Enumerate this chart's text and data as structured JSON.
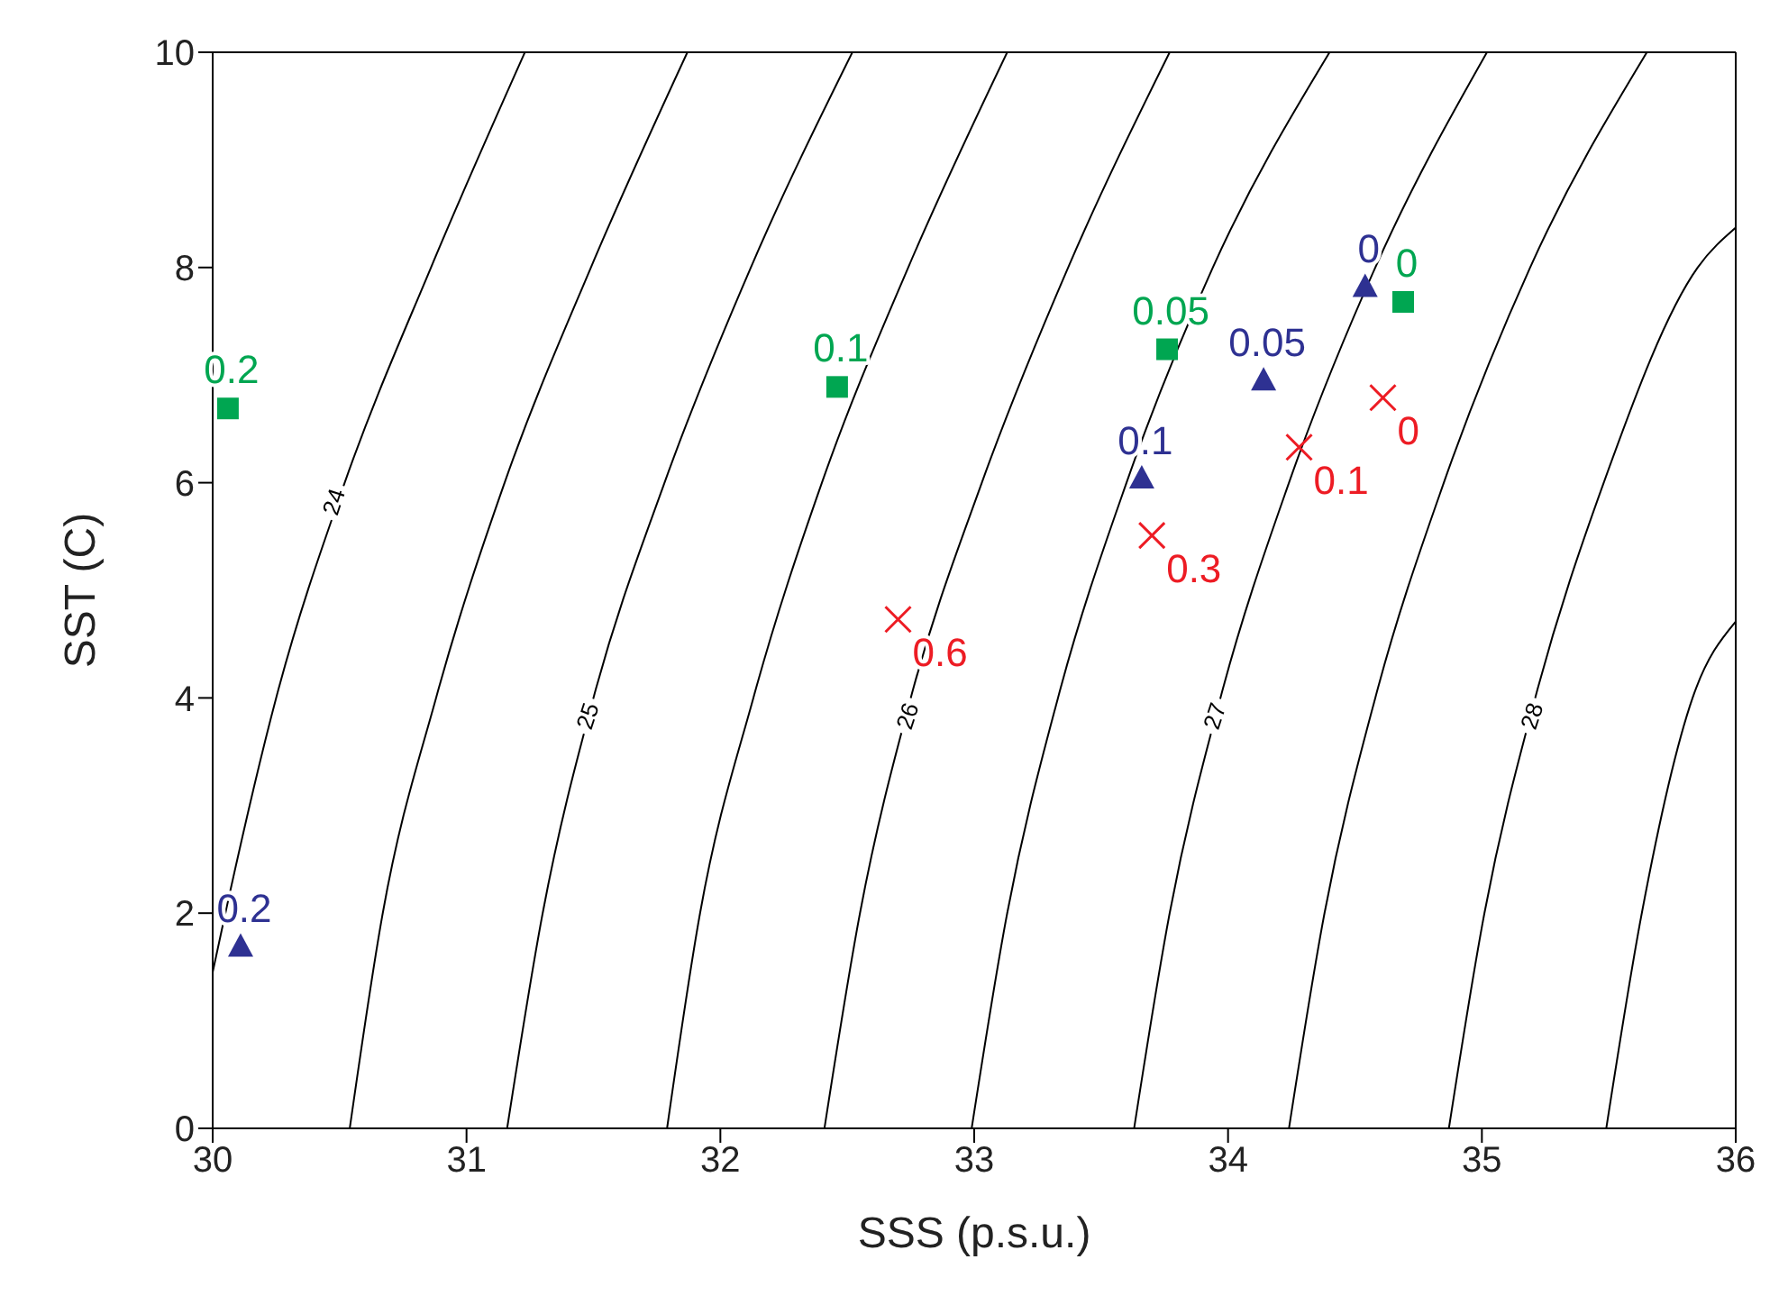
{
  "chart_data": {
    "type": "scatter",
    "xlabel": "SSS (p.s.u.)",
    "ylabel": "SST (C)",
    "xlim": [
      30,
      36
    ],
    "ylim": [
      0,
      10
    ],
    "xticks": [
      30,
      31,
      32,
      33,
      34,
      35,
      36
    ],
    "yticks": [
      0,
      2,
      4,
      6,
      8,
      10
    ],
    "grid": false,
    "legend": false,
    "series": [
      {
        "type": "line",
        "color": "#000000",
        "marker": "none",
        "x": [
          30,
          30.05,
          30.25,
          30.52,
          30.86,
          31.23
        ],
        "values": [
          1.45,
          2,
          4,
          6,
          8,
          10
        ]
      },
      {
        "type": "line",
        "color": "#000000",
        "marker": "none",
        "x": [
          30.54,
          30.67,
          30.88,
          31.15,
          31.49,
          31.87
        ],
        "values": [
          0,
          2,
          4,
          6,
          8,
          10
        ]
      },
      {
        "type": "line",
        "color": "#000000",
        "marker": "none",
        "x": [
          31.16,
          31.3,
          31.5,
          31.78,
          32.12,
          32.52
        ],
        "values": [
          0,
          2,
          4,
          6,
          8,
          10
        ]
      },
      {
        "type": "line",
        "color": "#000000",
        "marker": "none",
        "x": [
          31.79,
          31.92,
          32.13,
          32.4,
          32.74,
          33.13
        ],
        "values": [
          0,
          2,
          4,
          6,
          8,
          10
        ]
      },
      {
        "type": "line",
        "color": "#000000",
        "marker": "none",
        "x": [
          32.41,
          32.55,
          32.75,
          33.03,
          33.37,
          33.77
        ],
        "values": [
          0,
          2,
          4,
          6,
          8,
          10
        ]
      },
      {
        "type": "line",
        "color": "#000000",
        "marker": "none",
        "x": [
          32.99,
          33.13,
          33.33,
          33.6,
          33.94,
          34.4
        ],
        "values": [
          0,
          2,
          4,
          6,
          8,
          10
        ]
      },
      {
        "type": "line",
        "color": "#000000",
        "marker": "none",
        "x": [
          33.63,
          33.77,
          33.97,
          34.24,
          34.58,
          35.02
        ],
        "values": [
          0,
          2,
          4,
          6,
          8,
          10
        ]
      },
      {
        "type": "line",
        "color": "#000000",
        "marker": "none",
        "x": [
          34.24,
          34.38,
          34.58,
          34.85,
          35.19,
          35.65
        ],
        "values": [
          0,
          2,
          4,
          6,
          8,
          10
        ]
      },
      {
        "type": "line",
        "color": "#000000",
        "marker": "none",
        "x": [
          34.87,
          35.01,
          35.21,
          35.48,
          35.85,
          36
        ],
        "values": [
          0,
          2,
          4,
          6,
          8,
          8.37
        ]
      },
      {
        "type": "line",
        "color": "#000000",
        "marker": "none",
        "x": [
          35.49,
          35.63,
          35.83,
          36
        ],
        "values": [
          0,
          2,
          4,
          4.71
        ]
      },
      {
        "color": "#00a651",
        "marker": "square",
        "x": [
          30.06,
          32.46,
          33.76,
          34.69
        ],
        "values": [
          6.69,
          6.89,
          7.24,
          7.68
        ]
      },
      {
        "color": "#2e3192",
        "marker": "triangle",
        "x": [
          30.11,
          33.66,
          34.14,
          34.54
        ],
        "values": [
          1.68,
          6.03,
          6.94,
          7.81
        ]
      },
      {
        "color": "#ed1c24",
        "marker": "cross",
        "x": [
          32.7,
          33.7,
          34.28,
          34.61
        ],
        "values": [
          4.73,
          5.51,
          6.33,
          6.79
        ]
      }
    ],
    "annotations": [
      {
        "text": "24",
        "x": 30.48,
        "y": 5.82
      },
      {
        "text": "25",
        "x": 31.48,
        "y": 3.83
      },
      {
        "text": "26",
        "x": 32.74,
        "y": 3.83
      },
      {
        "text": "27",
        "x": 33.95,
        "y": 3.83
      },
      {
        "text": "28",
        "x": 35.2,
        "y": 3.83
      },
      {
        "text": "0.2",
        "x": 30.06,
        "y": 6.69
      },
      {
        "text": "0.1",
        "x": 32.46,
        "y": 6.89
      },
      {
        "text": "0.05",
        "x": 33.76,
        "y": 7.24
      },
      {
        "text": "0",
        "x": 34.69,
        "y": 7.68
      },
      {
        "text": "0.2",
        "x": 30.11,
        "y": 1.68
      },
      {
        "text": "0.1",
        "x": 33.66,
        "y": 6.03
      },
      {
        "text": "0.05",
        "x": 34.14,
        "y": 6.94
      },
      {
        "text": "0",
        "x": 34.54,
        "y": 7.81
      },
      {
        "text": "0.6",
        "x": 32.7,
        "y": 4.73
      },
      {
        "text": "0.3",
        "x": 33.7,
        "y": 5.51
      },
      {
        "text": "0.1",
        "x": 34.28,
        "y": 6.33
      },
      {
        "text": "0",
        "x": 34.61,
        "y": 6.79
      }
    ]
  }
}
